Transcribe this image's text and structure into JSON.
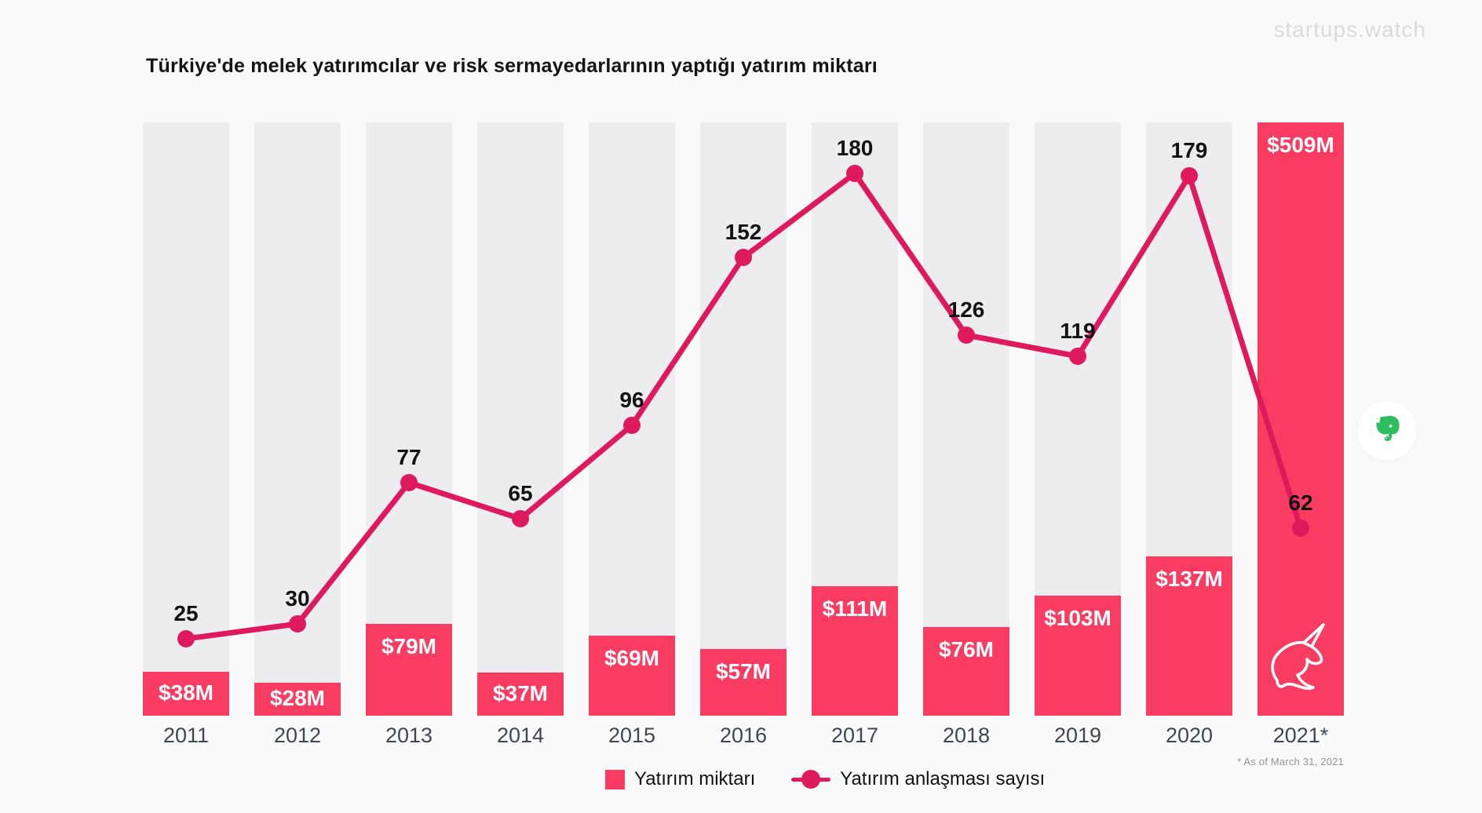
{
  "header": {
    "title": "Türkiye'de melek yatırımcılar ve risk sermayedarlarının yaptığı yatırım miktarı",
    "watermark": "startups.watch"
  },
  "chart_data": {
    "type": "combo",
    "title": "Türkiye'de melek yatırımcılar ve risk sermayedarlarının yaptığı yatırım miktarı",
    "categories": [
      "2011",
      "2012",
      "2013",
      "2014",
      "2015",
      "2016",
      "2017",
      "2018",
      "2019",
      "2020",
      "2021*"
    ],
    "series": [
      {
        "name": "Yatırım miktarı",
        "type": "bar",
        "unit": "USD millions",
        "values": [
          38,
          28,
          79,
          37,
          69,
          57,
          111,
          76,
          103,
          137,
          509
        ],
        "labels": [
          "$38M",
          "$28M",
          "$79M",
          "$37M",
          "$69M",
          "$57M",
          "$111M",
          "$76M",
          "$103M",
          "$137M",
          "$509M"
        ]
      },
      {
        "name": "Yatırım anlaşması sayısı",
        "type": "line",
        "values": [
          25,
          30,
          77,
          65,
          96,
          152,
          180,
          126,
          119,
          179,
          62
        ]
      }
    ],
    "ylim_bar": [
      0,
      509
    ],
    "ylim_line": [
      0,
      197
    ],
    "grid": false,
    "legend_position": "bottom"
  },
  "legend": {
    "bar_label": "Yatırım miktarı",
    "line_label": "Yatırım anlaşması sayısı"
  },
  "footnote": "* As of March 31, 2021",
  "colors": {
    "bar": "#fa3b62",
    "line": "#df1a5c",
    "column_bg": "#ededef",
    "page_bg": "#fafafa",
    "count_label": "#121212",
    "year_label": "#3e4653",
    "evernote_green": "#2dbe60"
  },
  "icons": {
    "unicorn": "unicorn-icon",
    "evernote": "evernote-icon"
  }
}
